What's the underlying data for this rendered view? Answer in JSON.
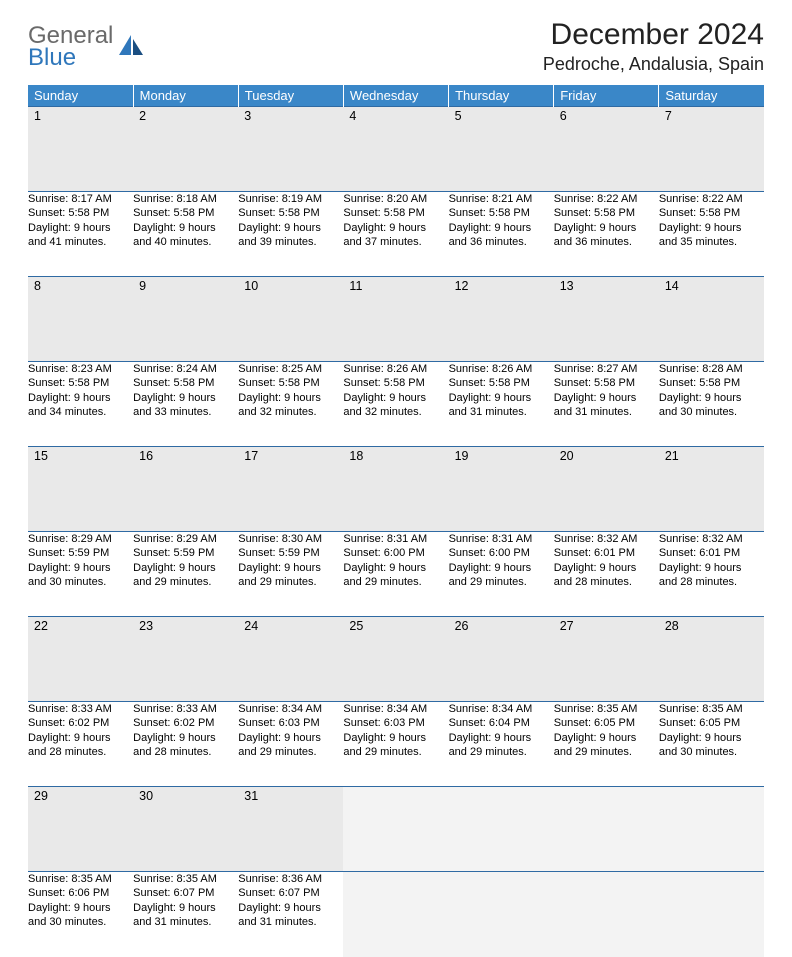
{
  "logo": {
    "line1": "General",
    "line2": "Blue"
  },
  "title": "December 2024",
  "location": "Pedroche, Andalusia, Spain",
  "colors": {
    "header_bg": "#3a87c8",
    "header_text": "#ffffff",
    "daynum_bg": "#e9e9e9",
    "row_border": "#2f6aa3",
    "logo_gray": "#6a6a6a",
    "logo_blue": "#2f77bb",
    "empty_bg": "#f3f3f3"
  },
  "weekdays": [
    "Sunday",
    "Monday",
    "Tuesday",
    "Wednesday",
    "Thursday",
    "Friday",
    "Saturday"
  ],
  "weeks": [
    [
      {
        "n": "1",
        "sr": "Sunrise: 8:17 AM",
        "ss": "Sunset: 5:58 PM",
        "d1": "Daylight: 9 hours",
        "d2": "and 41 minutes."
      },
      {
        "n": "2",
        "sr": "Sunrise: 8:18 AM",
        "ss": "Sunset: 5:58 PM",
        "d1": "Daylight: 9 hours",
        "d2": "and 40 minutes."
      },
      {
        "n": "3",
        "sr": "Sunrise: 8:19 AM",
        "ss": "Sunset: 5:58 PM",
        "d1": "Daylight: 9 hours",
        "d2": "and 39 minutes."
      },
      {
        "n": "4",
        "sr": "Sunrise: 8:20 AM",
        "ss": "Sunset: 5:58 PM",
        "d1": "Daylight: 9 hours",
        "d2": "and 37 minutes."
      },
      {
        "n": "5",
        "sr": "Sunrise: 8:21 AM",
        "ss": "Sunset: 5:58 PM",
        "d1": "Daylight: 9 hours",
        "d2": "and 36 minutes."
      },
      {
        "n": "6",
        "sr": "Sunrise: 8:22 AM",
        "ss": "Sunset: 5:58 PM",
        "d1": "Daylight: 9 hours",
        "d2": "and 36 minutes."
      },
      {
        "n": "7",
        "sr": "Sunrise: 8:22 AM",
        "ss": "Sunset: 5:58 PM",
        "d1": "Daylight: 9 hours",
        "d2": "and 35 minutes."
      }
    ],
    [
      {
        "n": "8",
        "sr": "Sunrise: 8:23 AM",
        "ss": "Sunset: 5:58 PM",
        "d1": "Daylight: 9 hours",
        "d2": "and 34 minutes."
      },
      {
        "n": "9",
        "sr": "Sunrise: 8:24 AM",
        "ss": "Sunset: 5:58 PM",
        "d1": "Daylight: 9 hours",
        "d2": "and 33 minutes."
      },
      {
        "n": "10",
        "sr": "Sunrise: 8:25 AM",
        "ss": "Sunset: 5:58 PM",
        "d1": "Daylight: 9 hours",
        "d2": "and 32 minutes."
      },
      {
        "n": "11",
        "sr": "Sunrise: 8:26 AM",
        "ss": "Sunset: 5:58 PM",
        "d1": "Daylight: 9 hours",
        "d2": "and 32 minutes."
      },
      {
        "n": "12",
        "sr": "Sunrise: 8:26 AM",
        "ss": "Sunset: 5:58 PM",
        "d1": "Daylight: 9 hours",
        "d2": "and 31 minutes."
      },
      {
        "n": "13",
        "sr": "Sunrise: 8:27 AM",
        "ss": "Sunset: 5:58 PM",
        "d1": "Daylight: 9 hours",
        "d2": "and 31 minutes."
      },
      {
        "n": "14",
        "sr": "Sunrise: 8:28 AM",
        "ss": "Sunset: 5:58 PM",
        "d1": "Daylight: 9 hours",
        "d2": "and 30 minutes."
      }
    ],
    [
      {
        "n": "15",
        "sr": "Sunrise: 8:29 AM",
        "ss": "Sunset: 5:59 PM",
        "d1": "Daylight: 9 hours",
        "d2": "and 30 minutes."
      },
      {
        "n": "16",
        "sr": "Sunrise: 8:29 AM",
        "ss": "Sunset: 5:59 PM",
        "d1": "Daylight: 9 hours",
        "d2": "and 29 minutes."
      },
      {
        "n": "17",
        "sr": "Sunrise: 8:30 AM",
        "ss": "Sunset: 5:59 PM",
        "d1": "Daylight: 9 hours",
        "d2": "and 29 minutes."
      },
      {
        "n": "18",
        "sr": "Sunrise: 8:31 AM",
        "ss": "Sunset: 6:00 PM",
        "d1": "Daylight: 9 hours",
        "d2": "and 29 minutes."
      },
      {
        "n": "19",
        "sr": "Sunrise: 8:31 AM",
        "ss": "Sunset: 6:00 PM",
        "d1": "Daylight: 9 hours",
        "d2": "and 29 minutes."
      },
      {
        "n": "20",
        "sr": "Sunrise: 8:32 AM",
        "ss": "Sunset: 6:01 PM",
        "d1": "Daylight: 9 hours",
        "d2": "and 28 minutes."
      },
      {
        "n": "21",
        "sr": "Sunrise: 8:32 AM",
        "ss": "Sunset: 6:01 PM",
        "d1": "Daylight: 9 hours",
        "d2": "and 28 minutes."
      }
    ],
    [
      {
        "n": "22",
        "sr": "Sunrise: 8:33 AM",
        "ss": "Sunset: 6:02 PM",
        "d1": "Daylight: 9 hours",
        "d2": "and 28 minutes."
      },
      {
        "n": "23",
        "sr": "Sunrise: 8:33 AM",
        "ss": "Sunset: 6:02 PM",
        "d1": "Daylight: 9 hours",
        "d2": "and 28 minutes."
      },
      {
        "n": "24",
        "sr": "Sunrise: 8:34 AM",
        "ss": "Sunset: 6:03 PM",
        "d1": "Daylight: 9 hours",
        "d2": "and 29 minutes."
      },
      {
        "n": "25",
        "sr": "Sunrise: 8:34 AM",
        "ss": "Sunset: 6:03 PM",
        "d1": "Daylight: 9 hours",
        "d2": "and 29 minutes."
      },
      {
        "n": "26",
        "sr": "Sunrise: 8:34 AM",
        "ss": "Sunset: 6:04 PM",
        "d1": "Daylight: 9 hours",
        "d2": "and 29 minutes."
      },
      {
        "n": "27",
        "sr": "Sunrise: 8:35 AM",
        "ss": "Sunset: 6:05 PM",
        "d1": "Daylight: 9 hours",
        "d2": "and 29 minutes."
      },
      {
        "n": "28",
        "sr": "Sunrise: 8:35 AM",
        "ss": "Sunset: 6:05 PM",
        "d1": "Daylight: 9 hours",
        "d2": "and 30 minutes."
      }
    ],
    [
      {
        "n": "29",
        "sr": "Sunrise: 8:35 AM",
        "ss": "Sunset: 6:06 PM",
        "d1": "Daylight: 9 hours",
        "d2": "and 30 minutes."
      },
      {
        "n": "30",
        "sr": "Sunrise: 8:35 AM",
        "ss": "Sunset: 6:07 PM",
        "d1": "Daylight: 9 hours",
        "d2": "and 31 minutes."
      },
      {
        "n": "31",
        "sr": "Sunrise: 8:36 AM",
        "ss": "Sunset: 6:07 PM",
        "d1": "Daylight: 9 hours",
        "d2": "and 31 minutes."
      },
      null,
      null,
      null,
      null
    ]
  ]
}
